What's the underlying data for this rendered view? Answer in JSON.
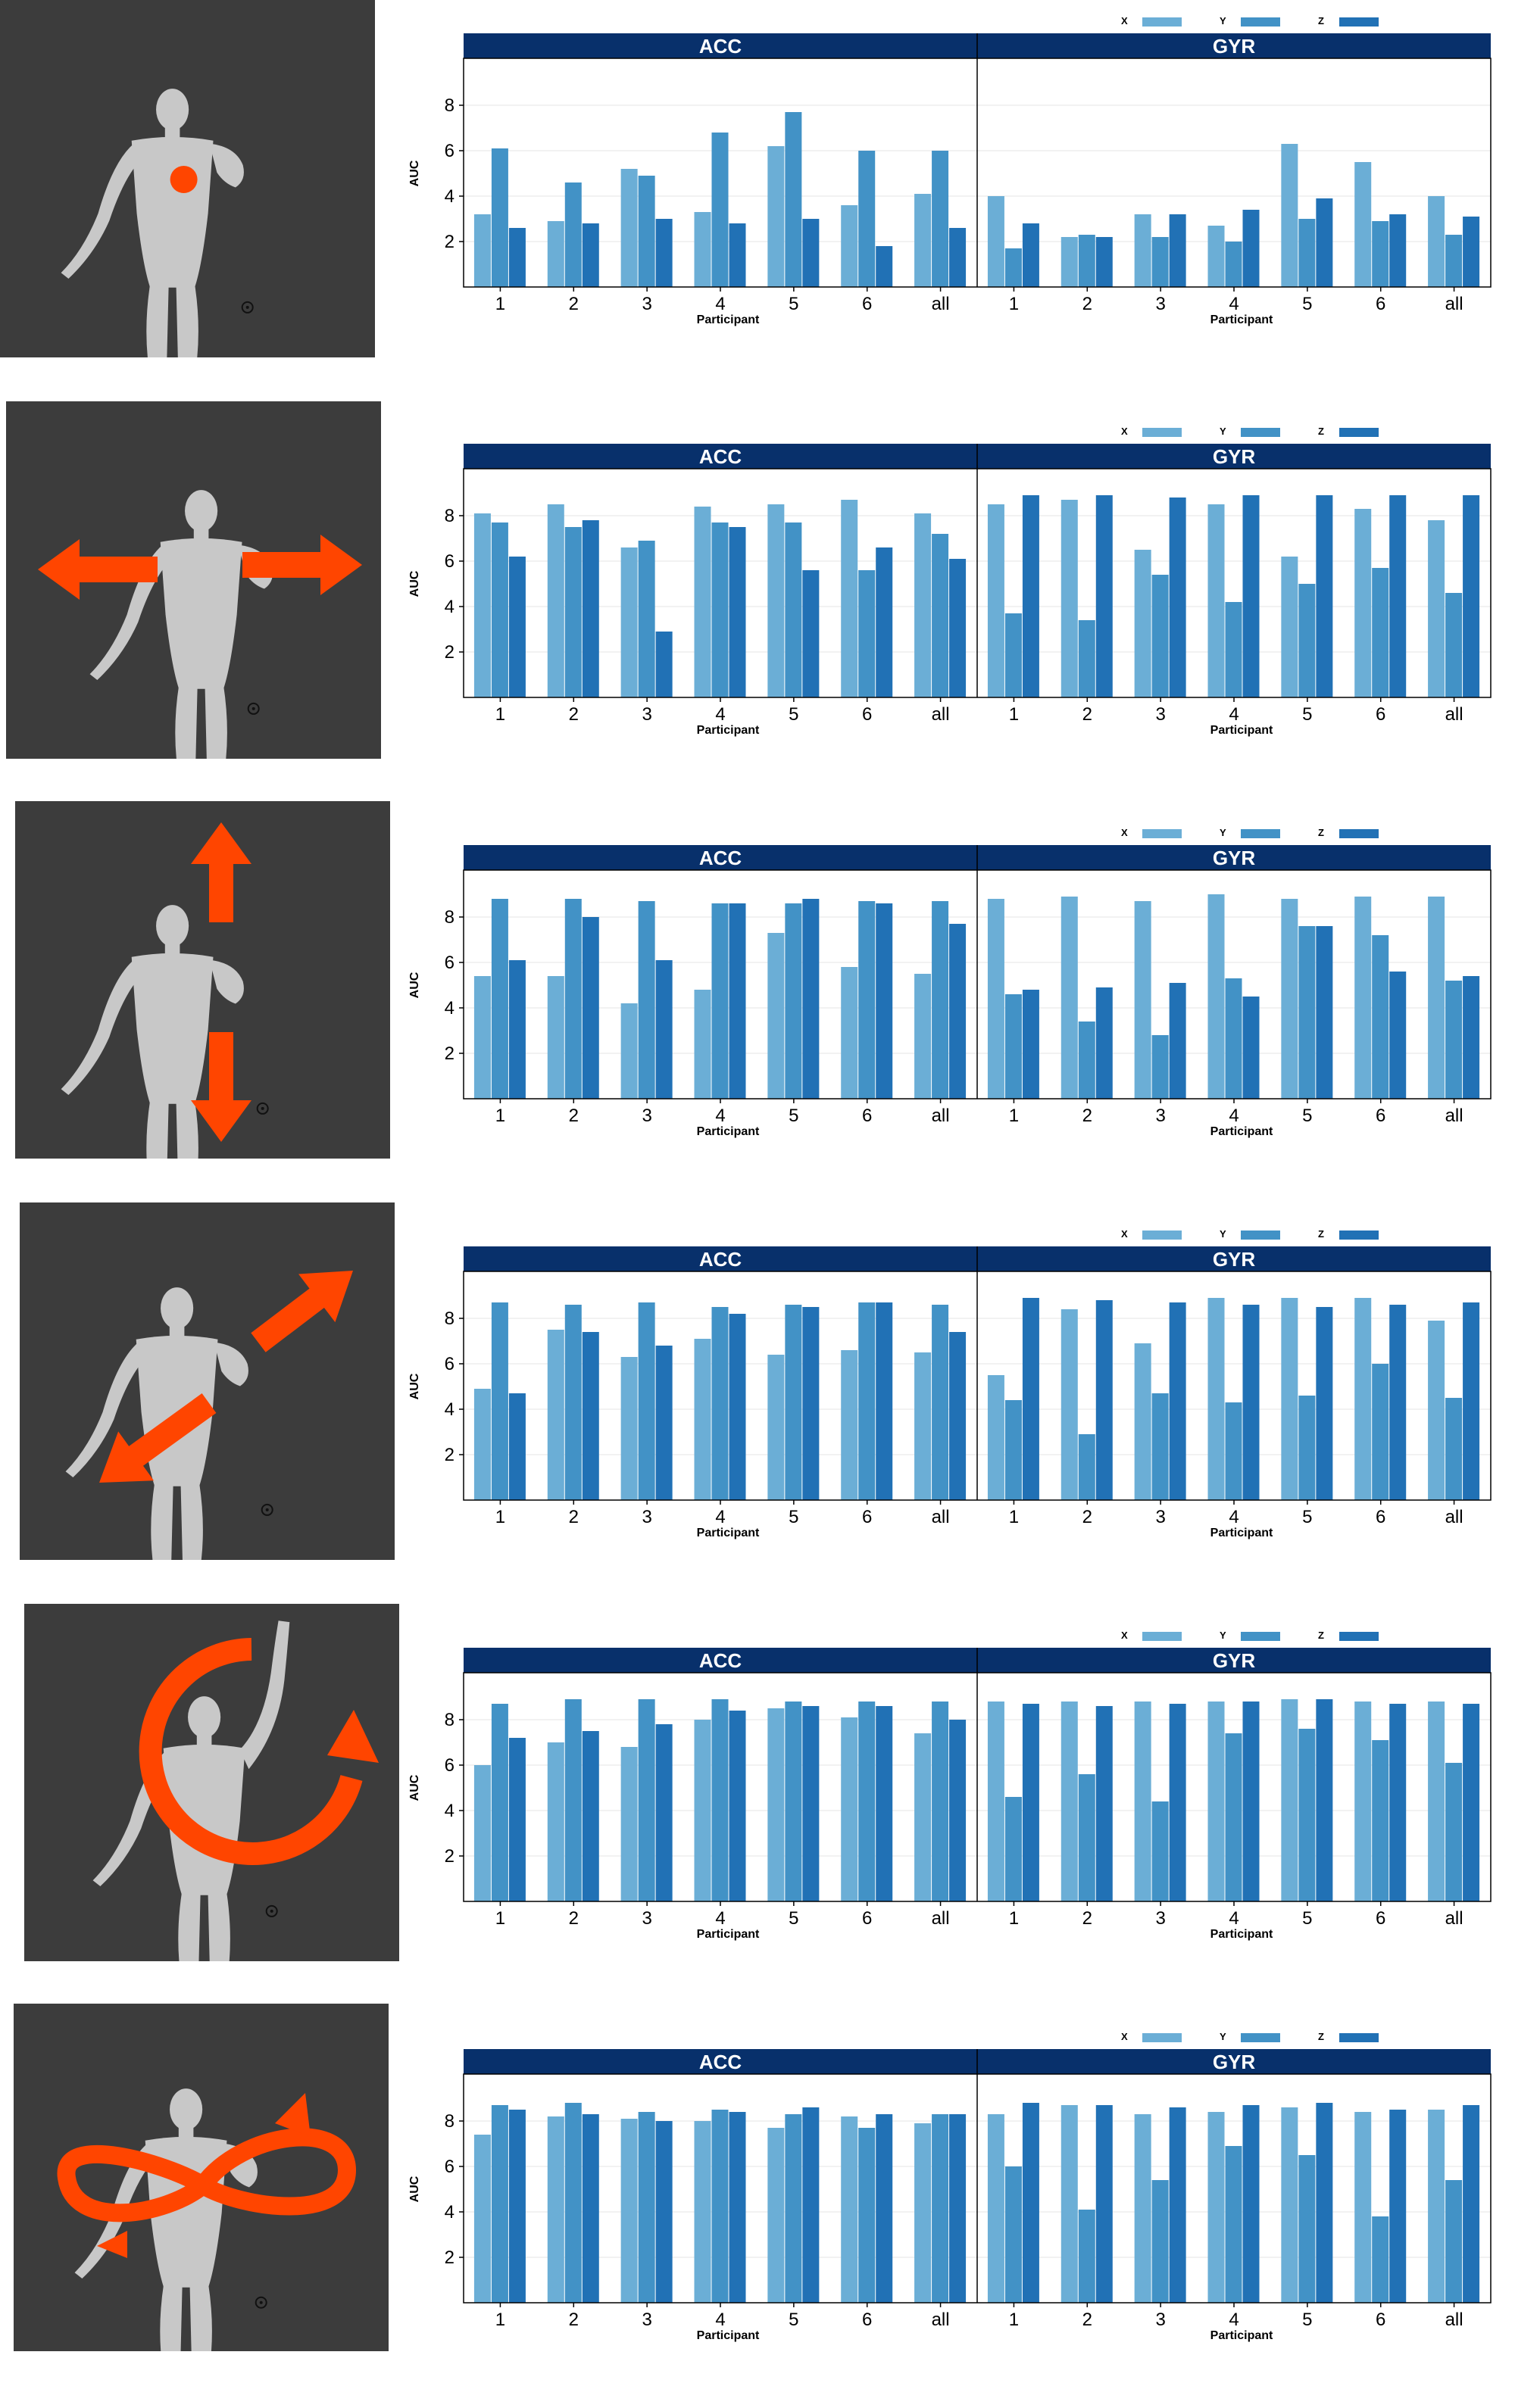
{
  "colors": {
    "x": "#6baed6",
    "y": "#4292c6",
    "z": "#2171b5",
    "facet_header": "#08306b",
    "photo_bg": "#3c3c3c",
    "arrow": "#ff4500"
  },
  "legend": [
    "X",
    "Y",
    "Z"
  ],
  "facets": [
    "ACC",
    "GYR"
  ],
  "xlabel": "Participant",
  "ylabel": "AUC",
  "yticks": [
    2,
    4,
    6,
    8
  ],
  "categories": [
    "1",
    "2",
    "3",
    "4",
    "5",
    "6",
    "all"
  ],
  "gestures": [
    {
      "icon": "tap-dot-icon"
    },
    {
      "icon": "horizontal-arrows-icon"
    },
    {
      "icon": "vertical-arrows-icon"
    },
    {
      "icon": "diagonal-arrows-icon"
    },
    {
      "icon": "circle-arrow-icon"
    },
    {
      "icon": "infinity-arrow-icon"
    }
  ],
  "chart_data": [
    {
      "type": "bar",
      "ylabel": "AUC",
      "xlabel": "Participant",
      "ylim": [
        0,
        10
      ],
      "categories": [
        "1",
        "2",
        "3",
        "4",
        "5",
        "6",
        "all"
      ],
      "facets": [
        {
          "name": "ACC",
          "series": [
            {
              "name": "X",
              "values": [
                3.2,
                2.9,
                5.2,
                3.3,
                6.2,
                3.6,
                4.1
              ]
            },
            {
              "name": "Y",
              "values": [
                6.1,
                4.6,
                4.9,
                6.8,
                7.7,
                6.0,
                6.0
              ]
            },
            {
              "name": "Z",
              "values": [
                2.6,
                2.8,
                3.0,
                2.8,
                3.0,
                1.8,
                2.6
              ]
            }
          ]
        },
        {
          "name": "GYR",
          "series": [
            {
              "name": "X",
              "values": [
                4.0,
                2.2,
                3.2,
                2.7,
                6.3,
                5.5,
                4.0
              ]
            },
            {
              "name": "Y",
              "values": [
                1.7,
                2.3,
                2.2,
                2.0,
                3.0,
                2.9,
                2.3
              ]
            },
            {
              "name": "Z",
              "values": [
                2.8,
                2.2,
                3.2,
                3.4,
                3.9,
                3.2,
                3.1
              ]
            }
          ]
        }
      ]
    },
    {
      "type": "bar",
      "ylabel": "AUC",
      "xlabel": "Participant",
      "ylim": [
        0,
        10
      ],
      "categories": [
        "1",
        "2",
        "3",
        "4",
        "5",
        "6",
        "all"
      ],
      "facets": [
        {
          "name": "ACC",
          "series": [
            {
              "name": "X",
              "values": [
                8.1,
                8.5,
                6.6,
                8.4,
                8.5,
                8.7,
                8.1
              ]
            },
            {
              "name": "Y",
              "values": [
                7.7,
                7.5,
                6.9,
                7.7,
                7.7,
                5.6,
                7.2
              ]
            },
            {
              "name": "Z",
              "values": [
                6.2,
                7.8,
                2.9,
                7.5,
                5.6,
                6.6,
                6.1
              ]
            }
          ]
        },
        {
          "name": "GYR",
          "series": [
            {
              "name": "X",
              "values": [
                8.5,
                8.7,
                6.5,
                8.5,
                6.2,
                8.3,
                7.8
              ]
            },
            {
              "name": "Y",
              "values": [
                3.7,
                3.4,
                5.4,
                4.2,
                5.0,
                5.7,
                4.6
              ]
            },
            {
              "name": "Z",
              "values": [
                8.9,
                8.9,
                8.8,
                8.9,
                8.9,
                8.9,
                8.9
              ]
            }
          ]
        }
      ]
    },
    {
      "type": "bar",
      "ylabel": "AUC",
      "xlabel": "Participant",
      "ylim": [
        0,
        10
      ],
      "categories": [
        "1",
        "2",
        "3",
        "4",
        "5",
        "6",
        "all"
      ],
      "facets": [
        {
          "name": "ACC",
          "series": [
            {
              "name": "X",
              "values": [
                5.4,
                5.4,
                4.2,
                4.8,
                7.3,
                5.8,
                5.5
              ]
            },
            {
              "name": "Y",
              "values": [
                8.8,
                8.8,
                8.7,
                8.6,
                8.6,
                8.7,
                8.7
              ]
            },
            {
              "name": "Z",
              "values": [
                6.1,
                8.0,
                6.1,
                8.6,
                8.8,
                8.6,
                7.7
              ]
            }
          ]
        },
        {
          "name": "GYR",
          "series": [
            {
              "name": "X",
              "values": [
                8.8,
                8.9,
                8.7,
                9.0,
                8.8,
                8.9,
                8.9
              ]
            },
            {
              "name": "Y",
              "values": [
                4.6,
                3.4,
                2.8,
                5.3,
                7.6,
                7.2,
                5.2
              ]
            },
            {
              "name": "Z",
              "values": [
                4.8,
                4.9,
                5.1,
                4.5,
                7.6,
                5.6,
                5.4
              ]
            }
          ]
        }
      ]
    },
    {
      "type": "bar",
      "ylabel": "AUC",
      "xlabel": "Participant",
      "ylim": [
        0,
        10
      ],
      "categories": [
        "1",
        "2",
        "3",
        "4",
        "5",
        "6",
        "all"
      ],
      "facets": [
        {
          "name": "ACC",
          "series": [
            {
              "name": "X",
              "values": [
                4.9,
                7.5,
                6.3,
                7.1,
                6.4,
                6.6,
                6.5
              ]
            },
            {
              "name": "Y",
              "values": [
                8.7,
                8.6,
                8.7,
                8.5,
                8.6,
                8.7,
                8.6
              ]
            },
            {
              "name": "Z",
              "values": [
                4.7,
                7.4,
                6.8,
                8.2,
                8.5,
                8.7,
                7.4
              ]
            }
          ]
        },
        {
          "name": "GYR",
          "series": [
            {
              "name": "X",
              "values": [
                5.5,
                8.4,
                6.9,
                8.9,
                8.9,
                8.9,
                7.9
              ]
            },
            {
              "name": "Y",
              "values": [
                4.4,
                2.9,
                4.7,
                4.3,
                4.6,
                6.0,
                4.5
              ]
            },
            {
              "name": "Z",
              "values": [
                8.9,
                8.8,
                8.7,
                8.6,
                8.5,
                8.6,
                8.7
              ]
            }
          ]
        }
      ]
    },
    {
      "type": "bar",
      "ylabel": "AUC",
      "xlabel": "Participant",
      "ylim": [
        0,
        10
      ],
      "categories": [
        "1",
        "2",
        "3",
        "4",
        "5",
        "6",
        "all"
      ],
      "facets": [
        {
          "name": "ACC",
          "series": [
            {
              "name": "X",
              "values": [
                6.0,
                7.0,
                6.8,
                8.0,
                8.5,
                8.1,
                7.4
              ]
            },
            {
              "name": "Y",
              "values": [
                8.7,
                8.9,
                8.9,
                8.9,
                8.8,
                8.8,
                8.8
              ]
            },
            {
              "name": "Z",
              "values": [
                7.2,
                7.5,
                7.8,
                8.4,
                8.6,
                8.6,
                8.0
              ]
            }
          ]
        },
        {
          "name": "GYR",
          "series": [
            {
              "name": "X",
              "values": [
                8.8,
                8.8,
                8.8,
                8.8,
                8.9,
                8.8,
                8.8
              ]
            },
            {
              "name": "Y",
              "values": [
                4.6,
                5.6,
                4.4,
                7.4,
                7.6,
                7.1,
                6.1
              ]
            },
            {
              "name": "Z",
              "values": [
                8.7,
                8.6,
                8.7,
                8.8,
                8.9,
                8.7,
                8.7
              ]
            }
          ]
        }
      ]
    },
    {
      "type": "bar",
      "ylabel": "AUC",
      "xlabel": "Participant",
      "ylim": [
        0,
        10
      ],
      "categories": [
        "1",
        "2",
        "3",
        "4",
        "5",
        "6",
        "all"
      ],
      "facets": [
        {
          "name": "ACC",
          "series": [
            {
              "name": "X",
              "values": [
                7.4,
                8.2,
                8.1,
                8.0,
                7.7,
                8.2,
                7.9
              ]
            },
            {
              "name": "Y",
              "values": [
                8.7,
                8.8,
                8.4,
                8.5,
                8.3,
                7.7,
                8.3
              ]
            },
            {
              "name": "Z",
              "values": [
                8.5,
                8.3,
                8.0,
                8.4,
                8.6,
                8.3,
                8.3
              ]
            }
          ]
        },
        {
          "name": "GYR",
          "series": [
            {
              "name": "X",
              "values": [
                8.3,
                8.7,
                8.3,
                8.4,
                8.6,
                8.4,
                8.5
              ]
            },
            {
              "name": "Y",
              "values": [
                6.0,
                4.1,
                5.4,
                6.9,
                6.5,
                3.8,
                5.4
              ]
            },
            {
              "name": "Z",
              "values": [
                8.8,
                8.7,
                8.6,
                8.7,
                8.8,
                8.5,
                8.7
              ]
            }
          ]
        }
      ]
    }
  ]
}
